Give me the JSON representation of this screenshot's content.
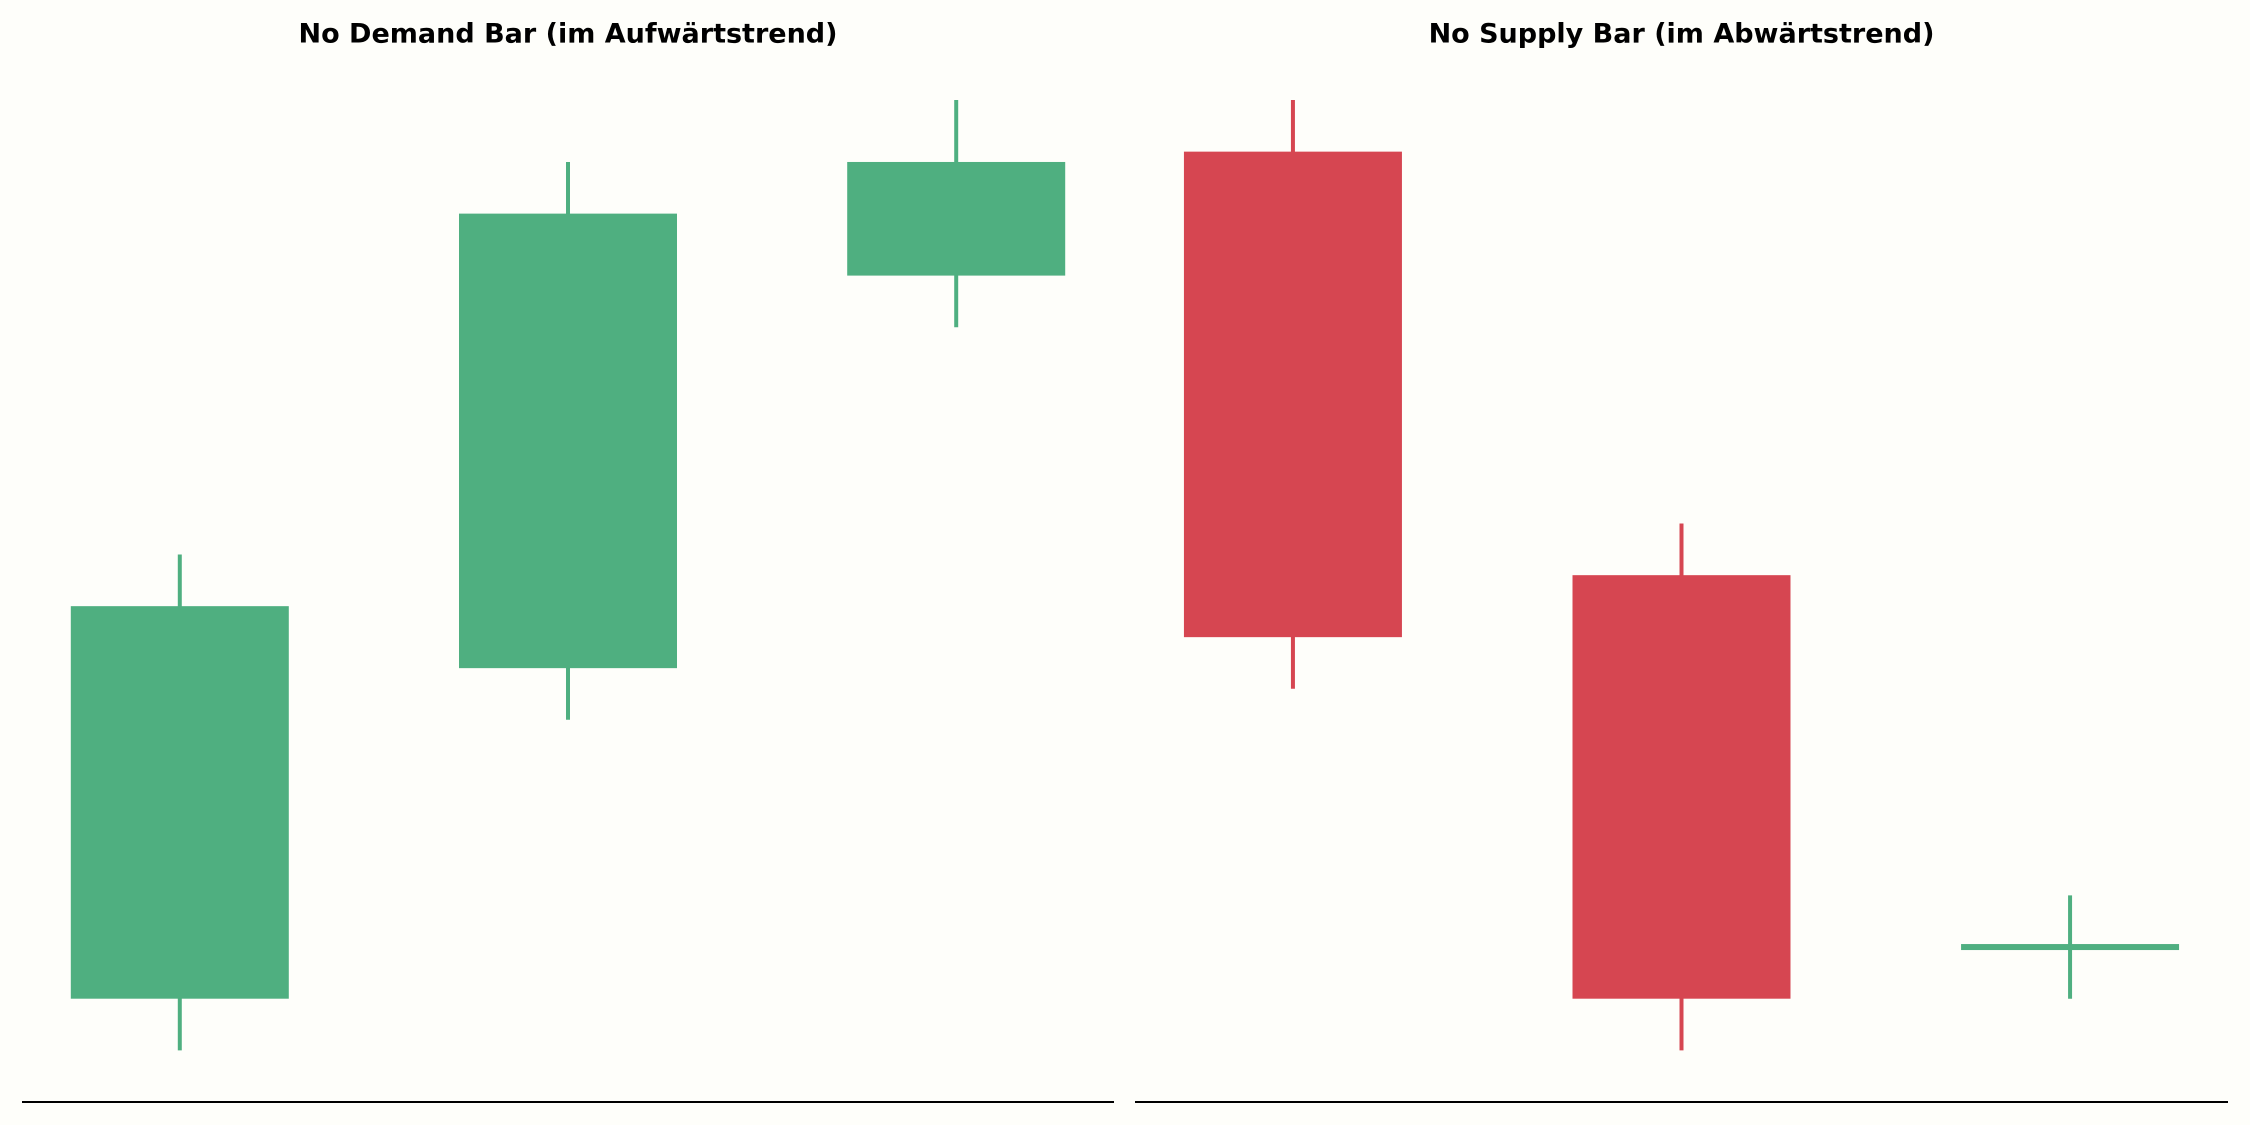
{
  "chart_data": [
    {
      "type": "candlestick",
      "title": "No Demand Bar (im Aufwärtstrend)",
      "open": [
        10,
        42,
        80
      ],
      "high": [
        53,
        91,
        97
      ],
      "low": [
        5,
        37,
        75
      ],
      "close": [
        48,
        86,
        91
      ],
      "up_color": "#4faf80",
      "down_color": "#d64651",
      "ylim": [
        0,
        100
      ]
    },
    {
      "type": "candlestick",
      "title": "No Supply Bar (im Abwärtstrend)",
      "open": [
        92,
        51,
        15
      ],
      "high": [
        97,
        56,
        20
      ],
      "low": [
        40,
        5,
        10
      ],
      "close": [
        45,
        10,
        15
      ],
      "up_color": "#4faf80",
      "down_color": "#d64651",
      "ylim": [
        0,
        100
      ]
    }
  ]
}
